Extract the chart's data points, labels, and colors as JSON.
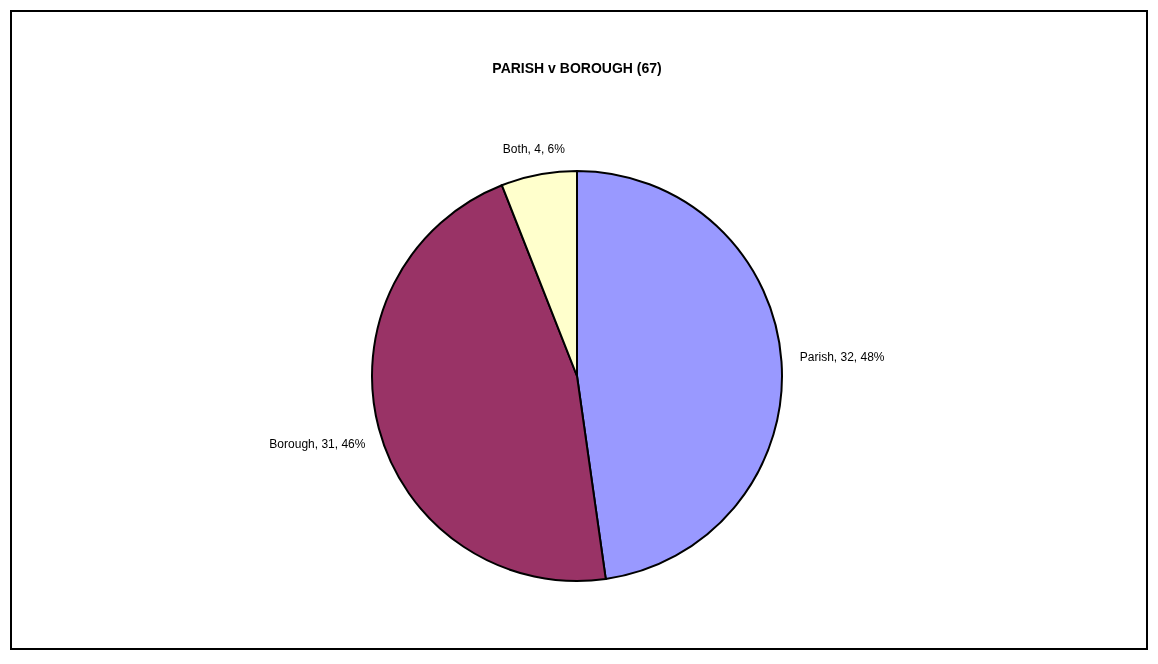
{
  "chart_data": {
    "type": "pie",
    "title": "PARISH v BOROUGH (67)",
    "categories": [
      "Parish",
      "Borough",
      "Both"
    ],
    "values": [
      32,
      31,
      4
    ],
    "colors": [
      "#9999ff",
      "#993366",
      "#ffffcc"
    ],
    "value_labels": [
      "32, 48%",
      "31, 46%",
      "4, 6%"
    ],
    "legend": false
  }
}
